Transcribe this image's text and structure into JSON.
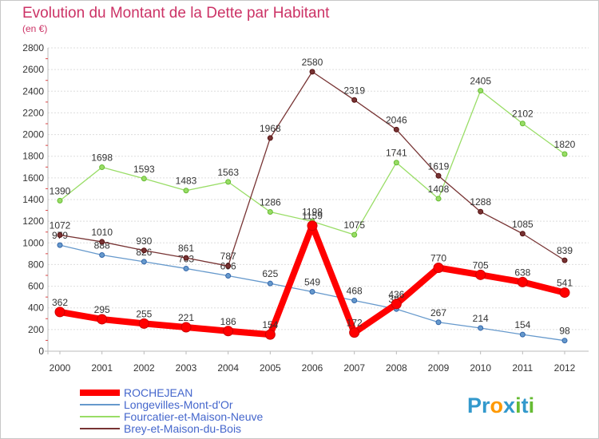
{
  "chart_data": {
    "type": "line",
    "title": "Evolution du Montant de la Dette par Habitant",
    "subtitle": "(en €)",
    "xlabel": "",
    "ylabel": "",
    "x": [
      "2000",
      "2001",
      "2002",
      "2003",
      "2004",
      "2005",
      "2006",
      "2007",
      "2008",
      "2009",
      "2010",
      "2011",
      "2012"
    ],
    "ylim": [
      0,
      2800
    ],
    "yticks": [
      0,
      200,
      400,
      600,
      800,
      1000,
      1200,
      1400,
      1600,
      1800,
      2000,
      2200,
      2400,
      2600,
      2800
    ],
    "grid": true,
    "legend_position": "bottom-left",
    "series": [
      {
        "name": "ROCHEJEAN",
        "color": "#ff0000",
        "values": [
          362,
          295,
          255,
          221,
          186,
          154,
          1159,
          172,
          436,
          770,
          705,
          638,
          541
        ],
        "labels": [
          "362",
          "295",
          "255",
          "221",
          "186",
          "154",
          "1159",
          "172",
          "436",
          "770",
          "705",
          "638",
          "541"
        ]
      },
      {
        "name": "Longevilles-Mont-d'Or",
        "color": "#6699cc",
        "values": [
          979,
          888,
          826,
          763,
          696,
          625,
          549,
          468,
          389,
          267,
          214,
          154,
          98
        ],
        "labels": [
          "979",
          "888",
          "826",
          "763",
          "696",
          "625",
          "549",
          "468",
          "389",
          "267",
          "214",
          "154",
          "98"
        ]
      },
      {
        "name": "Fourcatier-et-Maison-Neuve",
        "color": "#99dd66",
        "values": [
          1390,
          1698,
          1593,
          1483,
          1563,
          1286,
          1198,
          1075,
          1741,
          1408,
          2405,
          2102,
          1820
        ],
        "labels": [
          "1390",
          "1698",
          "1593",
          "1483",
          "1563",
          "1286",
          "1198",
          "1075",
          "1741",
          "1408",
          "2405",
          "2102",
          "1820"
        ]
      },
      {
        "name": "Brey-et-Maison-du-Bois",
        "color": "#773333",
        "values": [
          1072,
          1010,
          930,
          861,
          787,
          1968,
          2580,
          2319,
          2046,
          1619,
          1288,
          1085,
          839
        ],
        "labels": [
          "1072",
          "1010",
          "930",
          "861",
          "787",
          "1968",
          "2580",
          "2319",
          "2046",
          "1619",
          "1288",
          "1085",
          "839"
        ]
      }
    ]
  },
  "logo": {
    "text": "Proxiti"
  }
}
